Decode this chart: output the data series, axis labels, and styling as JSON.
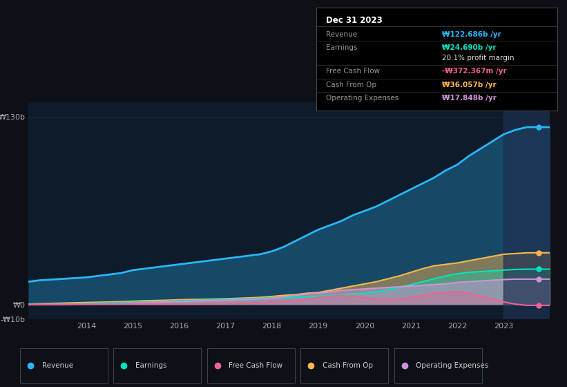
{
  "background_color": "#0d1117",
  "plot_bg_color": "#0d1b2a",
  "grid_color": "#1e2d3d",
  "years": [
    2012.75,
    2013,
    2013.25,
    2013.5,
    2013.75,
    2014,
    2014.25,
    2014.5,
    2014.75,
    2015,
    2015.25,
    2015.5,
    2015.75,
    2016,
    2016.25,
    2016.5,
    2016.75,
    2017,
    2017.25,
    2017.5,
    2017.75,
    2018,
    2018.25,
    2018.5,
    2018.75,
    2019,
    2019.25,
    2019.5,
    2019.75,
    2020,
    2020.25,
    2020.5,
    2020.75,
    2021,
    2021.25,
    2021.5,
    2021.75,
    2022,
    2022.25,
    2022.5,
    2022.75,
    2023,
    2023.25,
    2023.5,
    2023.75,
    2024
  ],
  "revenue": [
    16,
    17,
    17.5,
    18,
    18.5,
    19,
    20,
    21,
    22,
    24,
    25,
    26,
    27,
    28,
    29,
    30,
    31,
    32,
    33,
    34,
    35,
    37,
    40,
    44,
    48,
    52,
    55,
    58,
    62,
    65,
    68,
    72,
    76,
    80,
    84,
    88,
    93,
    97,
    103,
    108,
    113,
    118,
    121,
    123,
    123,
    123
  ],
  "earnings": [
    0.3,
    0.5,
    0.6,
    0.7,
    0.8,
    1.0,
    1.2,
    1.4,
    1.6,
    1.8,
    2.0,
    2.2,
    2.5,
    2.8,
    3.0,
    3.2,
    3.5,
    3.8,
    4.0,
    4.2,
    4.5,
    4.8,
    5.0,
    5.2,
    5.5,
    6.0,
    6.5,
    7.0,
    7.5,
    8.0,
    9.0,
    10.5,
    12.0,
    14.0,
    16.0,
    18.0,
    20.0,
    21.5,
    22.5,
    23.0,
    23.5,
    24.0,
    24.5,
    24.7,
    24.7,
    24.7
  ],
  "free_cash_flow": [
    0.1,
    0.2,
    0.25,
    0.3,
    0.35,
    0.4,
    0.45,
    0.5,
    0.55,
    0.6,
    0.55,
    0.5,
    0.55,
    0.5,
    0.55,
    0.6,
    0.7,
    0.8,
    1.0,
    1.2,
    1.5,
    2.0,
    2.5,
    3.0,
    4.0,
    5.0,
    6.0,
    6.5,
    6.0,
    5.0,
    4.0,
    3.5,
    4.0,
    5.0,
    6.5,
    8.0,
    8.5,
    9.0,
    8.0,
    6.0,
    4.0,
    2.0,
    0.5,
    -0.37,
    -0.37,
    -0.37
  ],
  "cash_from_op": [
    0.5,
    0.8,
    1.0,
    1.2,
    1.4,
    1.6,
    1.8,
    2.0,
    2.2,
    2.5,
    2.8,
    3.0,
    3.2,
    3.5,
    3.7,
    3.8,
    4.0,
    4.2,
    4.5,
    4.8,
    5.2,
    5.8,
    6.5,
    7.0,
    8.0,
    8.5,
    10.0,
    11.5,
    13.0,
    14.5,
    16.0,
    18.0,
    20.0,
    22.5,
    25.0,
    27.0,
    28.0,
    29.0,
    30.5,
    32.0,
    33.5,
    35.0,
    35.5,
    36.0,
    36.0,
    36.0
  ],
  "operating_expenses": [
    0.2,
    0.3,
    0.35,
    0.4,
    0.5,
    0.6,
    0.7,
    0.8,
    1.0,
    1.2,
    1.5,
    1.8,
    2.0,
    2.2,
    2.5,
    2.8,
    3.0,
    3.2,
    3.5,
    3.8,
    4.0,
    4.5,
    5.5,
    6.5,
    7.5,
    8.0,
    9.0,
    10.0,
    10.5,
    11.0,
    11.5,
    12.0,
    12.5,
    13.0,
    13.5,
    14.0,
    14.5,
    15.5,
    16.0,
    16.5,
    17.0,
    17.5,
    17.8,
    17.8,
    17.8,
    17.8
  ],
  "revenue_color": "#29b6f6",
  "earnings_color": "#00e5c0",
  "free_cash_flow_color": "#f06292",
  "cash_from_op_color": "#ffb74d",
  "operating_expenses_color": "#ce93d8",
  "ylim": [
    -10,
    140
  ],
  "xlabel_years": [
    2014,
    2015,
    2016,
    2017,
    2018,
    2019,
    2020,
    2021,
    2022,
    2023
  ],
  "info_box": {
    "title": "Dec 31 2023",
    "rows": [
      {
        "label": "Revenue",
        "value": "₩122.686b /yr",
        "color": "#29b6f6"
      },
      {
        "label": "Earnings",
        "value": "₩24.690b /yr",
        "color": "#00e5c0"
      },
      {
        "label": "",
        "value": "20.1% profit margin",
        "color": "#dddddd"
      },
      {
        "label": "Free Cash Flow",
        "value": "-₩372.367m /yr",
        "color": "#f06292"
      },
      {
        "label": "Cash From Op",
        "value": "₩36.057b /yr",
        "color": "#ffb74d"
      },
      {
        "label": "Operating Expenses",
        "value": "₩17.848b /yr",
        "color": "#ce93d8"
      }
    ]
  },
  "legend": [
    {
      "label": "Revenue",
      "color": "#29b6f6"
    },
    {
      "label": "Earnings",
      "color": "#00e5c0"
    },
    {
      "label": "Free Cash Flow",
      "color": "#f06292"
    },
    {
      "label": "Cash From Op",
      "color": "#ffb74d"
    },
    {
      "label": "Operating Expenses",
      "color": "#ce93d8"
    }
  ]
}
